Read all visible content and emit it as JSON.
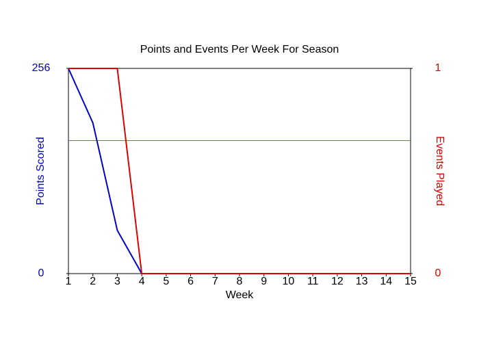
{
  "chart_data": {
    "type": "line",
    "title": "Points and Events Per Week For Season",
    "x_label": "Week",
    "y_label": "Points Scored",
    "y2_label": "Events Played",
    "x": [
      1,
      2,
      3,
      4,
      5,
      6,
      7,
      8,
      9,
      10,
      11,
      12,
      13,
      14,
      15
    ],
    "xlim": [
      1,
      15
    ],
    "xticks": [
      1,
      2,
      3,
      4,
      5,
      6,
      7,
      8,
      9,
      10,
      11,
      12,
      13,
      14,
      15
    ],
    "ylim": [
      0,
      256
    ],
    "yticks": [
      0,
      256
    ],
    "y2lim": [
      0,
      1
    ],
    "y2ticks": [
      0,
      1
    ],
    "y_color": "#0000cc",
    "y2_color": "#dd0000",
    "reference_line": {
      "value": 166,
      "color": "#6666dd"
    },
    "series": [
      {
        "name": "Points Scored",
        "color": "#0000cc",
        "values": [
          256,
          188,
          54,
          0,
          0,
          0,
          0,
          0,
          0,
          0,
          0,
          0,
          0,
          0,
          0
        ]
      },
      {
        "name": "Events Played",
        "color": "#dd0000",
        "axis": "y2",
        "values": [
          1,
          1,
          1,
          0,
          0,
          0,
          0,
          0,
          0,
          0,
          0,
          0,
          0,
          0,
          0
        ]
      }
    ]
  }
}
